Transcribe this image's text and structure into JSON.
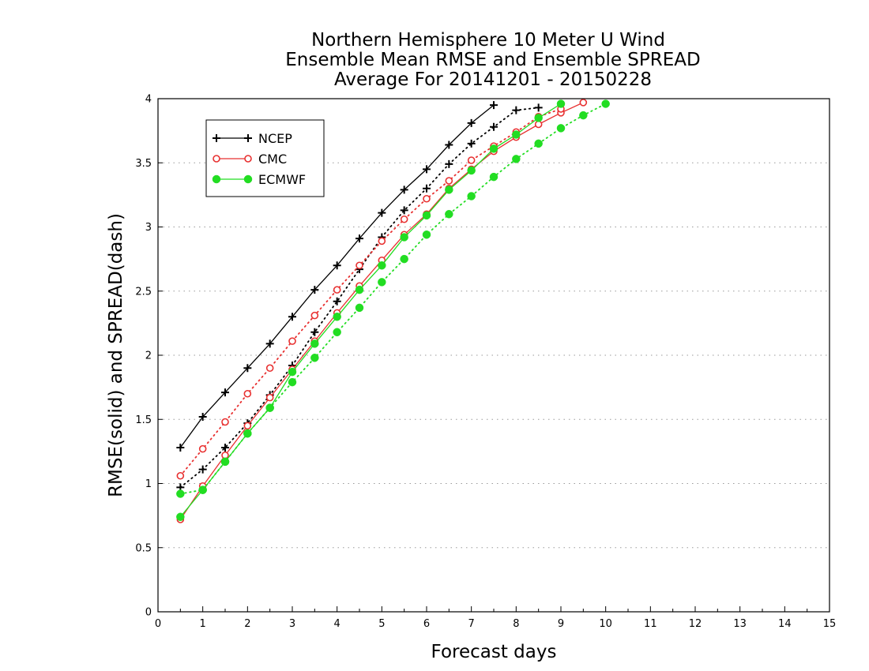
{
  "chart_data": {
    "type": "line",
    "title_lines": [
      "Northern Hemisphere 10 Meter U Wind",
      "Ensemble Mean RMSE and Ensemble SPREAD",
      "Average For 20141201 - 20150228"
    ],
    "xlabel": "Forecast days",
    "ylabel": "RMSE(solid) and SPREAD(dash)",
    "xlim": [
      0,
      15
    ],
    "ylim": [
      0,
      4
    ],
    "x_ticks": [
      "0",
      "1",
      "2",
      "3",
      "4",
      "5",
      "6",
      "7",
      "8",
      "9",
      "10",
      "11",
      "12",
      "13",
      "14",
      "15"
    ],
    "y_ticks": [
      "0",
      "0.5",
      "1",
      "1.5",
      "2",
      "2.5",
      "3",
      "3.5",
      "4"
    ],
    "grid": "horizontal dotted",
    "legend_position": "top-left",
    "series": [
      {
        "name": "NCEP",
        "metric": "RMSE",
        "style": "solid",
        "color": "#000000",
        "marker": "plus",
        "x": [
          0.5,
          1,
          1.5,
          2,
          2.5,
          3,
          3.5,
          4,
          4.5,
          5,
          5.5,
          6,
          6.5,
          7,
          7.5
        ],
        "y": [
          1.28,
          1.52,
          1.71,
          1.9,
          2.09,
          2.3,
          2.51,
          2.7,
          2.91,
          3.11,
          3.29,
          3.45,
          3.64,
          3.81,
          3.95
        ]
      },
      {
        "name": "NCEP",
        "metric": "SPREAD",
        "style": "dash",
        "color": "#000000",
        "marker": "plus",
        "x": [
          0.5,
          1,
          1.5,
          2,
          2.5,
          3,
          3.5,
          4,
          4.5,
          5,
          5.5,
          6,
          6.5,
          7,
          7.5,
          8,
          8.5
        ],
        "y": [
          0.97,
          1.11,
          1.28,
          1.47,
          1.69,
          1.92,
          2.18,
          2.42,
          2.67,
          2.92,
          3.13,
          3.3,
          3.49,
          3.65,
          3.78,
          3.91,
          3.93
        ]
      },
      {
        "name": "CMC",
        "metric": "RMSE",
        "style": "solid",
        "color": "#e83030",
        "marker": "open-circle",
        "x": [
          0.5,
          1,
          1.5,
          2,
          2.5,
          3,
          3.5,
          4,
          4.5,
          5,
          5.5,
          6,
          6.5,
          7,
          7.5,
          8,
          8.5,
          9,
          9.5
        ],
        "y": [
          0.72,
          0.98,
          1.22,
          1.45,
          1.67,
          1.89,
          2.11,
          2.33,
          2.54,
          2.74,
          2.94,
          3.1,
          3.3,
          3.45,
          3.59,
          3.7,
          3.8,
          3.89,
          3.97
        ]
      },
      {
        "name": "CMC",
        "metric": "SPREAD",
        "style": "dash",
        "color": "#e83030",
        "marker": "open-circle",
        "x": [
          0.5,
          1,
          1.5,
          2,
          2.5,
          3,
          3.5,
          4,
          4.5,
          5,
          5.5,
          6,
          6.5,
          7,
          7.5,
          8,
          8.5,
          9
        ],
        "y": [
          1.06,
          1.27,
          1.48,
          1.7,
          1.9,
          2.11,
          2.31,
          2.51,
          2.7,
          2.89,
          3.06,
          3.22,
          3.36,
          3.52,
          3.63,
          3.74,
          3.86,
          3.92
        ]
      },
      {
        "name": "ECMWF",
        "metric": "RMSE",
        "style": "solid",
        "color": "#22dd22",
        "marker": "filled-circle",
        "x": [
          0.5,
          1,
          1.5,
          2,
          2.5,
          3,
          3.5,
          4,
          4.5,
          5,
          5.5,
          6,
          6.5,
          7,
          7.5,
          8,
          8.5,
          9
        ],
        "y": [
          0.74,
          0.95,
          1.17,
          1.39,
          1.59,
          1.87,
          2.09,
          2.3,
          2.51,
          2.7,
          2.92,
          3.09,
          3.29,
          3.44,
          3.61,
          3.72,
          3.85,
          3.96
        ]
      },
      {
        "name": "ECMWF",
        "metric": "SPREAD",
        "style": "dash",
        "color": "#22dd22",
        "marker": "filled-circle",
        "x": [
          0.5,
          1,
          1.5,
          2,
          2.5,
          3,
          3.5,
          4,
          4.5,
          5,
          5.5,
          6,
          6.5,
          7,
          7.5,
          8,
          8.5,
          9,
          9.5,
          10
        ],
        "y": [
          0.92,
          0.95,
          1.17,
          1.39,
          1.59,
          1.79,
          1.98,
          2.18,
          2.37,
          2.57,
          2.75,
          2.94,
          3.1,
          3.24,
          3.39,
          3.53,
          3.65,
          3.77,
          3.87,
          3.96
        ]
      }
    ],
    "legend": [
      {
        "label": "NCEP",
        "color": "#000000",
        "marker": "plus"
      },
      {
        "label": "CMC",
        "color": "#e83030",
        "marker": "open-circle"
      },
      {
        "label": "ECMWF",
        "color": "#22dd22",
        "marker": "filled-circle"
      }
    ]
  }
}
